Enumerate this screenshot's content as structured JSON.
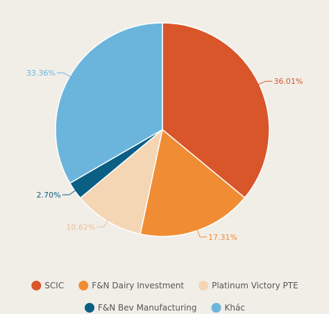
{
  "chart_data": {
    "type": "pie",
    "title": "",
    "categories": [
      "SCIC",
      "F&N Dairy Investment",
      "Platinum Victory PTE",
      "F&N Bev Manufacturing",
      "Khác"
    ],
    "values": [
      36.01,
      17.31,
      10.62,
      2.7,
      33.36
    ],
    "labels": [
      "36.01%",
      "17.31%",
      "10.62%",
      "2.70%",
      "33.36%"
    ],
    "colors": [
      "#d9552a",
      "#f08d34",
      "#f4d5b4",
      "#0b5f85",
      "#6bb5dc"
    ],
    "legend": "bottom"
  }
}
